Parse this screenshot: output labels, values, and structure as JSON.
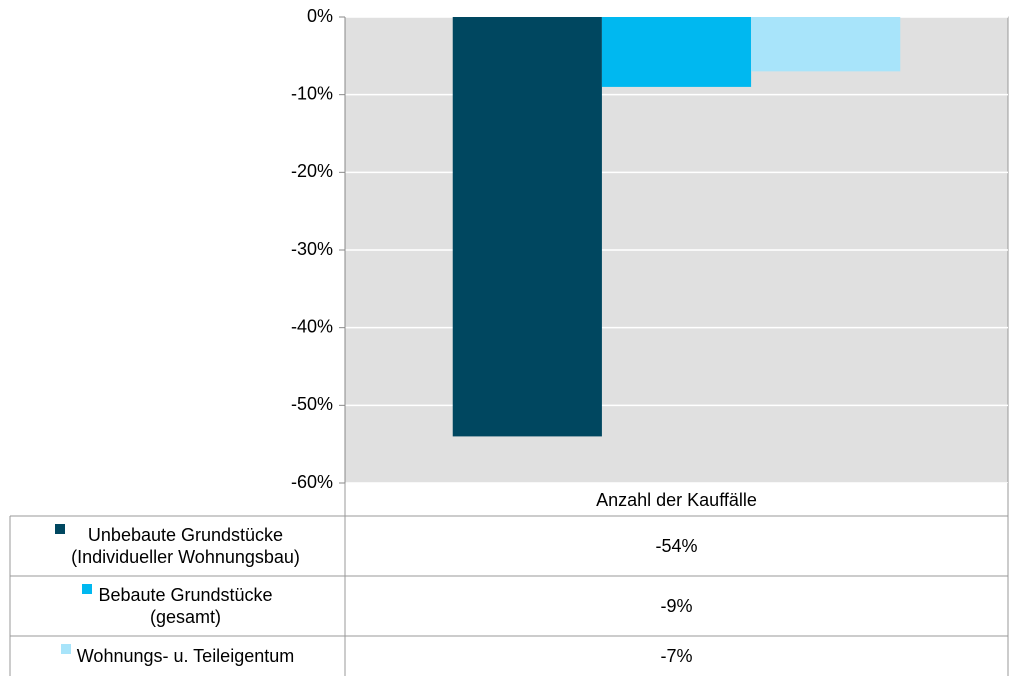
{
  "chart_data": {
    "type": "bar",
    "categories": [
      "Anzahl der Kauffälle"
    ],
    "series": [
      {
        "name": "Unbebaute Grundstücke\n(Individueller Wohnungsbau)",
        "color": "#004760",
        "values": [
          -54
        ],
        "value_labels": [
          "-54%"
        ]
      },
      {
        "name": "Bebaute Grundstücke\n(gesamt)",
        "color": "#00b8f0",
        "values": [
          -9
        ],
        "value_labels": [
          "-9%"
        ]
      },
      {
        "name": "Wohnungs- u. Teileigentum",
        "color": "#a8e4fa",
        "values": [
          -7
        ],
        "value_labels": [
          "-7%"
        ]
      }
    ],
    "ylim": [
      -60,
      0
    ],
    "yticks": [
      {
        "value": 0,
        "label": "0%"
      },
      {
        "value": -10,
        "label": "-10%"
      },
      {
        "value": -20,
        "label": "-20%"
      },
      {
        "value": -30,
        "label": "-30%"
      },
      {
        "value": -40,
        "label": "-40%"
      },
      {
        "value": -50,
        "label": "-50%"
      },
      {
        "value": -60,
        "label": "-60%"
      }
    ],
    "grid": true
  }
}
